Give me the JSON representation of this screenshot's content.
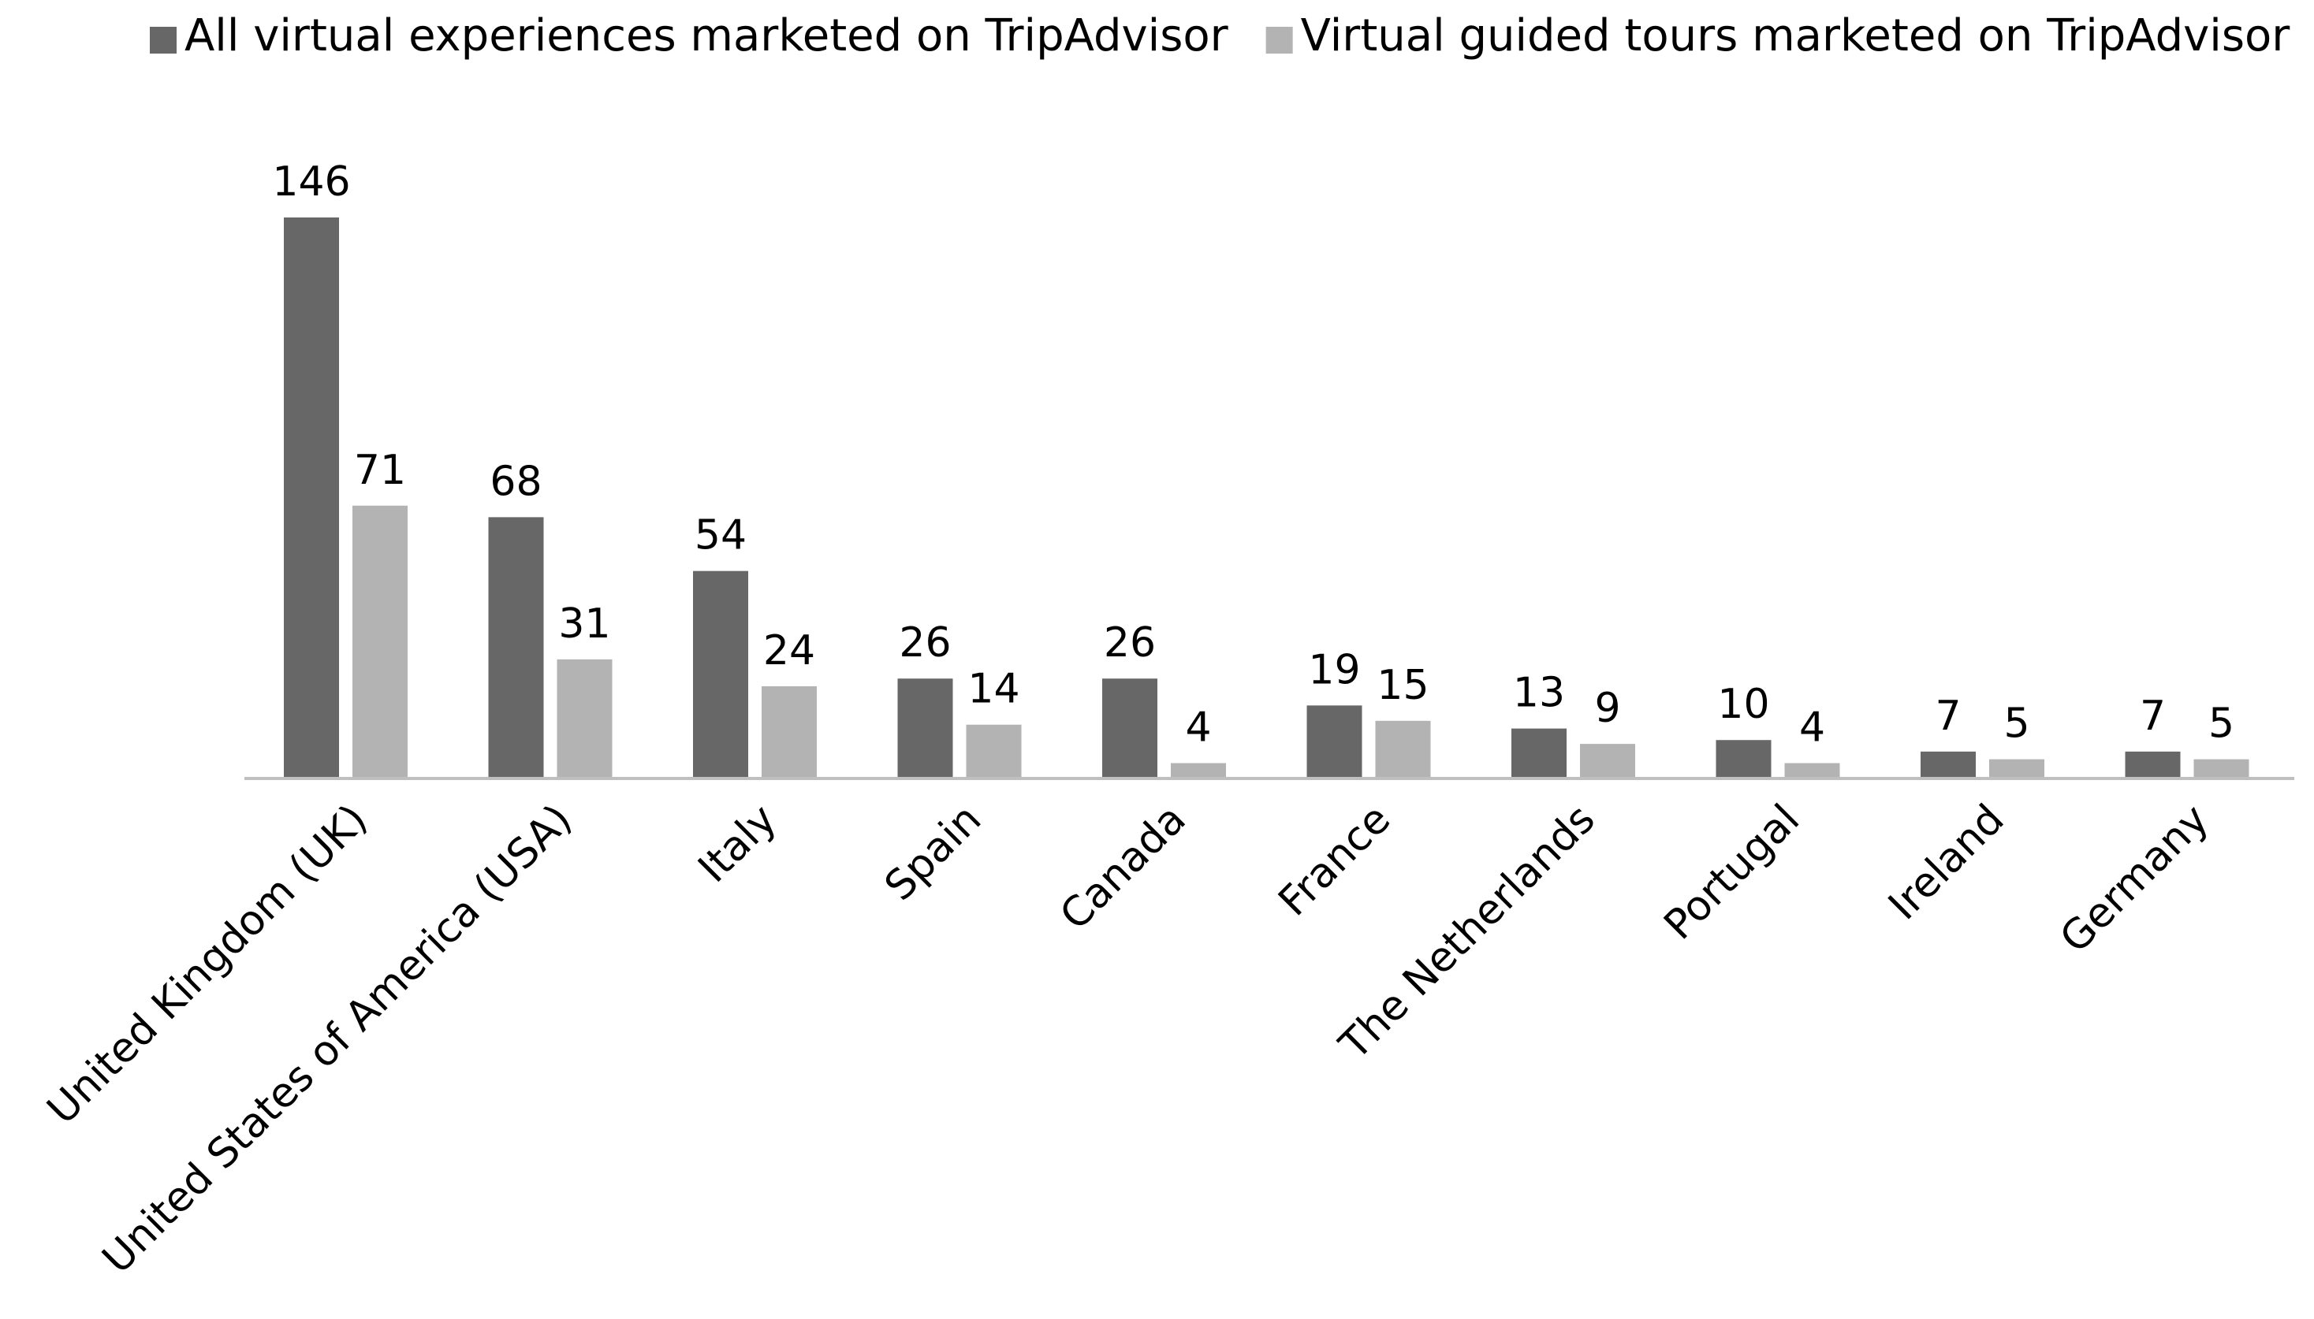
{
  "chart_data": {
    "type": "bar",
    "title": "",
    "xlabel": "",
    "ylabel": "",
    "ylim": [
      0,
      146
    ],
    "grid": false,
    "legend_position": "top",
    "categories": [
      "United Kingdom (UK)",
      "United States of America (USA)",
      "Italy",
      "Spain",
      "Canada",
      "France",
      "The Netherlands",
      "Portugal",
      "Ireland",
      "Germany"
    ],
    "series": [
      {
        "name": "All virtual experiences marketed on TripAdvisor",
        "color": "#676767",
        "values": [
          146,
          68,
          54,
          26,
          26,
          19,
          13,
          10,
          7,
          7
        ]
      },
      {
        "name": "Virtual guided tours marketed on TripAdvisor",
        "color": "#b3b3b3",
        "values": [
          71,
          31,
          24,
          14,
          4,
          15,
          9,
          4,
          5,
          5
        ]
      }
    ]
  }
}
